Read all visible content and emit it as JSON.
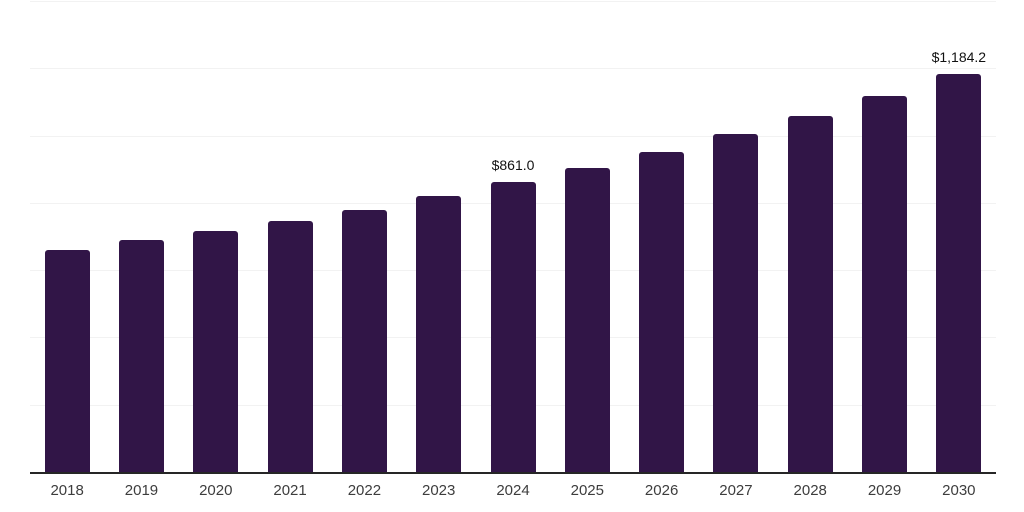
{
  "chart_data": {
    "type": "bar",
    "title": "",
    "xlabel": "",
    "ylabel": "",
    "categories": [
      "2018",
      "2019",
      "2020",
      "2021",
      "2022",
      "2023",
      "2024",
      "2025",
      "2026",
      "2027",
      "2028",
      "2029",
      "2030"
    ],
    "values": [
      660,
      689,
      715,
      746,
      780,
      821,
      861.0,
      904,
      952,
      1006,
      1059,
      1118,
      1184.2
    ],
    "data_labels": [
      "",
      "",
      "",
      "",
      "",
      "",
      "$861.0",
      "",
      "",
      "",
      "",
      "",
      "$1,184.2"
    ],
    "ylim": [
      0,
      1400
    ],
    "gridline_interval": 200,
    "grid": true,
    "legend": false,
    "bar_color": "#311547",
    "axis_line_color": "#262626",
    "gridline_color": "#f2f2f2",
    "tick_label_color": "#3d3d3d",
    "data_label_color": "#111111",
    "background_color": "#ffffff"
  }
}
